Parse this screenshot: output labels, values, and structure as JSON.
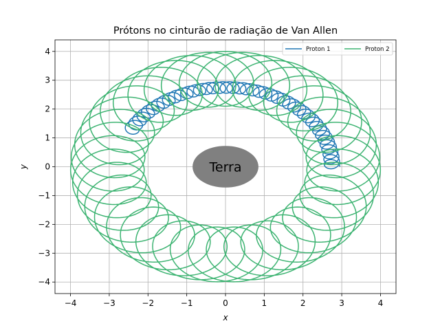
{
  "chart_data": {
    "type": "line",
    "title": "Prótons no cinturão de radiação de Van Allen",
    "xlabel": "x",
    "ylabel": "y",
    "xlim": [
      -4.4,
      4.4
    ],
    "ylim": [
      -4.4,
      4.4
    ],
    "xticks": [
      -4,
      -3,
      -2,
      -1,
      0,
      1,
      2,
      3,
      4
    ],
    "yticks": [
      -4,
      -3,
      -2,
      -1,
      0,
      1,
      2,
      3,
      4
    ],
    "grid": true,
    "legend_position": "top-right",
    "earth": {
      "label": "Terra",
      "center": [
        0,
        0
      ],
      "rx": 0.85,
      "ry": 0.85,
      "color": "#808080"
    },
    "series": [
      {
        "name": "Proton 1",
        "color": "#1f77b4",
        "guiding_radius": 2.75,
        "gyro_radius": 0.2,
        "angle_start_deg": 0,
        "angle_end_deg": 152,
        "loops": 42
      },
      {
        "name": "Proton 2",
        "color": "#3cb371",
        "guiding_radius": 3.05,
        "gyro_radius": 0.95,
        "angle_start_deg": -90,
        "angle_end_deg": 630,
        "loops": 41
      }
    ]
  }
}
